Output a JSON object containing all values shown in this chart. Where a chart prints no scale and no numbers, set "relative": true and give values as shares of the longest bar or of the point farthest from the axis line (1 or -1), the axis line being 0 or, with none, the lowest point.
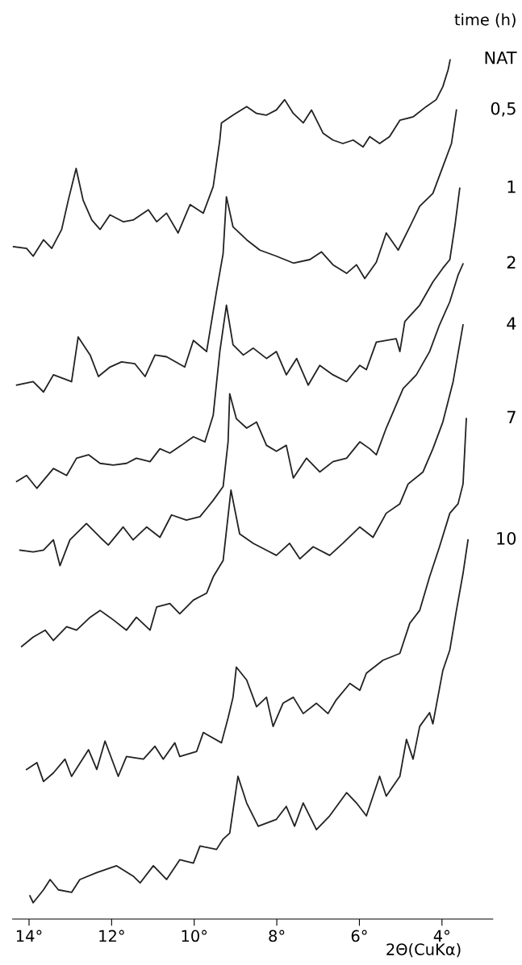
{
  "chart_data": {
    "type": "line",
    "relative": true,
    "legend_title": "time (h)",
    "xlabel": "2Θ(CuKα)",
    "xlim": [
      14.4,
      2.77
    ],
    "xticks": [
      {
        "value": 14,
        "label": "14°"
      },
      {
        "value": 12,
        "label": "12°"
      },
      {
        "value": 10,
        "label": "10°"
      },
      {
        "value": 8,
        "label": "8°"
      },
      {
        "value": 6,
        "label": "6°"
      },
      {
        "value": 4,
        "label": "4°"
      }
    ],
    "grid": false,
    "legend": false,
    "marker": "none",
    "line_style": "solid",
    "tick_labels": "x",
    "series": [
      {
        "name": "NAT",
        "color": "#222222",
        "x": [
          14.38,
          14.06,
          13.9,
          13.65,
          13.45,
          13.21,
          13.05,
          12.86,
          12.69,
          12.48,
          12.28,
          12.04,
          11.72,
          11.48,
          11.11,
          10.91,
          10.67,
          10.39,
          10.1,
          9.78,
          9.54,
          9.38,
          9.34,
          9.06,
          8.73,
          8.49,
          8.25,
          8.01,
          7.81,
          7.6,
          7.36,
          7.16,
          6.88,
          6.64,
          6.4,
          6.15,
          5.91,
          5.75,
          5.51,
          5.27,
          5.02,
          4.7,
          4.38,
          4.14,
          3.98,
          3.85,
          3.8
        ],
        "values": [
          0.782,
          0.78,
          0.771,
          0.79,
          0.78,
          0.802,
          0.836,
          0.873,
          0.836,
          0.813,
          0.802,
          0.819,
          0.811,
          0.813,
          0.825,
          0.811,
          0.821,
          0.798,
          0.831,
          0.821,
          0.852,
          0.906,
          0.926,
          0.935,
          0.945,
          0.937,
          0.935,
          0.941,
          0.953,
          0.937,
          0.926,
          0.941,
          0.914,
          0.906,
          0.902,
          0.906,
          0.898,
          0.91,
          0.902,
          0.91,
          0.929,
          0.933,
          0.945,
          0.953,
          0.968,
          0.988,
          1.0
        ]
      },
      {
        "name": "0,5",
        "color": "#222222",
        "x": [
          14.3,
          13.9,
          13.65,
          13.41,
          12.97,
          12.81,
          12.52,
          12.32,
          12.04,
          11.76,
          11.44,
          11.19,
          10.95,
          10.67,
          10.23,
          10.02,
          9.7,
          9.46,
          9.3,
          9.22,
          9.06,
          8.73,
          8.41,
          8.01,
          7.6,
          7.2,
          6.92,
          6.64,
          6.31,
          6.07,
          5.87,
          5.59,
          5.35,
          5.06,
          4.78,
          4.54,
          4.22,
          3.98,
          3.77,
          3.65
        ],
        "values": [
          0.621,
          0.625,
          0.613,
          0.633,
          0.625,
          0.677,
          0.656,
          0.631,
          0.642,
          0.648,
          0.646,
          0.631,
          0.656,
          0.654,
          0.642,
          0.673,
          0.66,
          0.73,
          0.774,
          0.84,
          0.805,
          0.79,
          0.778,
          0.771,
          0.763,
          0.767,
          0.776,
          0.761,
          0.751,
          0.761,
          0.745,
          0.764,
          0.798,
          0.778,
          0.805,
          0.829,
          0.844,
          0.875,
          0.902,
          0.941
        ]
      },
      {
        "name": "1",
        "color": "#222222",
        "x": [
          14.3,
          14.06,
          13.81,
          13.41,
          13.09,
          12.85,
          12.56,
          12.28,
          11.96,
          11.64,
          11.4,
          11.07,
          10.83,
          10.59,
          10.31,
          10.02,
          9.74,
          9.54,
          9.38,
          9.22,
          9.06,
          8.81,
          8.57,
          8.25,
          8.01,
          7.77,
          7.52,
          7.24,
          6.96,
          6.64,
          6.31,
          5.99,
          5.83,
          5.59,
          5.11,
          5.02,
          4.9,
          4.54,
          4.22,
          3.98,
          3.81,
          3.69,
          3.57
        ],
        "values": [
          0.509,
          0.516,
          0.501,
          0.524,
          0.516,
          0.536,
          0.54,
          0.53,
          0.528,
          0.53,
          0.536,
          0.532,
          0.547,
          0.542,
          0.551,
          0.561,
          0.555,
          0.586,
          0.66,
          0.714,
          0.668,
          0.656,
          0.664,
          0.652,
          0.66,
          0.633,
          0.652,
          0.621,
          0.644,
          0.633,
          0.625,
          0.644,
          0.639,
          0.671,
          0.675,
          0.66,
          0.695,
          0.714,
          0.741,
          0.757,
          0.767,
          0.805,
          0.85
        ]
      },
      {
        "name": "2",
        "color": "#222222",
        "x": [
          14.22,
          13.9,
          13.65,
          13.41,
          13.25,
          13.01,
          12.61,
          12.28,
          12.08,
          11.72,
          11.48,
          11.15,
          10.83,
          10.55,
          10.19,
          9.86,
          9.54,
          9.3,
          9.18,
          9.14,
          8.98,
          8.73,
          8.49,
          8.25,
          8.01,
          7.77,
          7.6,
          7.28,
          6.96,
          6.64,
          6.31,
          5.99,
          5.75,
          5.59,
          5.35,
          4.94,
          4.62,
          4.3,
          4.06,
          3.81,
          3.61,
          3.49
        ],
        "values": [
          0.429,
          0.427,
          0.429,
          0.441,
          0.411,
          0.441,
          0.46,
          0.444,
          0.435,
          0.456,
          0.441,
          0.456,
          0.444,
          0.47,
          0.464,
          0.468,
          0.487,
          0.503,
          0.555,
          0.611,
          0.582,
          0.571,
          0.578,
          0.551,
          0.544,
          0.551,
          0.513,
          0.536,
          0.52,
          0.532,
          0.536,
          0.555,
          0.547,
          0.54,
          0.571,
          0.617,
          0.633,
          0.66,
          0.691,
          0.718,
          0.749,
          0.762
        ]
      },
      {
        "name": "4",
        "color": "#222222",
        "x": [
          14.18,
          13.9,
          13.61,
          13.41,
          13.09,
          12.85,
          12.52,
          12.28,
          11.96,
          11.64,
          11.4,
          11.07,
          10.91,
          10.59,
          10.35,
          10.02,
          9.7,
          9.54,
          9.3,
          9.11,
          8.9,
          8.57,
          8.25,
          8.01,
          7.69,
          7.44,
          7.12,
          6.72,
          6.4,
          5.99,
          5.67,
          5.35,
          5.02,
          4.82,
          4.46,
          4.22,
          3.98,
          3.73,
          3.49
        ],
        "values": [
          0.317,
          0.328,
          0.336,
          0.324,
          0.34,
          0.336,
          0.351,
          0.359,
          0.348,
          0.336,
          0.351,
          0.336,
          0.363,
          0.367,
          0.355,
          0.371,
          0.379,
          0.398,
          0.417,
          0.499,
          0.448,
          0.437,
          0.429,
          0.423,
          0.437,
          0.419,
          0.433,
          0.423,
          0.437,
          0.456,
          0.444,
          0.472,
          0.483,
          0.506,
          0.52,
          0.547,
          0.578,
          0.625,
          0.691
        ]
      },
      {
        "name": "7",
        "color": "#222222",
        "x": [
          14.06,
          13.81,
          13.65,
          13.41,
          13.13,
          12.97,
          12.56,
          12.36,
          12.16,
          11.84,
          11.64,
          11.23,
          10.95,
          10.75,
          10.47,
          10.35,
          9.94,
          9.78,
          9.34,
          9.18,
          9.06,
          8.98,
          8.73,
          8.49,
          8.25,
          8.09,
          7.85,
          7.6,
          7.36,
          7.04,
          6.76,
          6.56,
          6.23,
          5.99,
          5.83,
          5.43,
          5.02,
          4.78,
          4.54,
          4.3,
          4.06,
          3.81,
          3.61,
          3.49,
          3.41
        ],
        "values": [
          0.174,
          0.182,
          0.16,
          0.17,
          0.186,
          0.166,
          0.197,
          0.174,
          0.207,
          0.166,
          0.189,
          0.186,
          0.201,
          0.186,
          0.205,
          0.189,
          0.195,
          0.217,
          0.205,
          0.234,
          0.258,
          0.293,
          0.278,
          0.247,
          0.258,
          0.224,
          0.251,
          0.258,
          0.239,
          0.251,
          0.239,
          0.255,
          0.274,
          0.266,
          0.286,
          0.301,
          0.309,
          0.344,
          0.359,
          0.398,
          0.433,
          0.472,
          0.483,
          0.506,
          0.582
        ]
      },
      {
        "name": "10",
        "color": "#222222",
        "x": [
          13.98,
          13.9,
          13.65,
          13.49,
          13.29,
          12.97,
          12.77,
          12.36,
          11.88,
          11.48,
          11.31,
          10.99,
          10.67,
          10.35,
          10.02,
          9.86,
          9.46,
          9.3,
          9.14,
          8.94,
          8.73,
          8.45,
          8.01,
          7.77,
          7.57,
          7.36,
          7.04,
          6.72,
          6.31,
          6.07,
          5.83,
          5.51,
          5.35,
          5.02,
          4.86,
          4.7,
          4.54,
          4.3,
          4.22,
          3.98,
          3.81,
          3.65,
          3.49,
          3.37
        ],
        "values": [
          0.027,
          0.019,
          0.034,
          0.046,
          0.034,
          0.031,
          0.046,
          0.054,
          0.062,
          0.05,
          0.042,
          0.062,
          0.046,
          0.069,
          0.065,
          0.085,
          0.081,
          0.093,
          0.1,
          0.166,
          0.135,
          0.108,
          0.116,
          0.131,
          0.108,
          0.135,
          0.104,
          0.12,
          0.147,
          0.135,
          0.12,
          0.166,
          0.143,
          0.166,
          0.209,
          0.186,
          0.224,
          0.24,
          0.227,
          0.289,
          0.313,
          0.359,
          0.402,
          0.441
        ]
      }
    ]
  }
}
